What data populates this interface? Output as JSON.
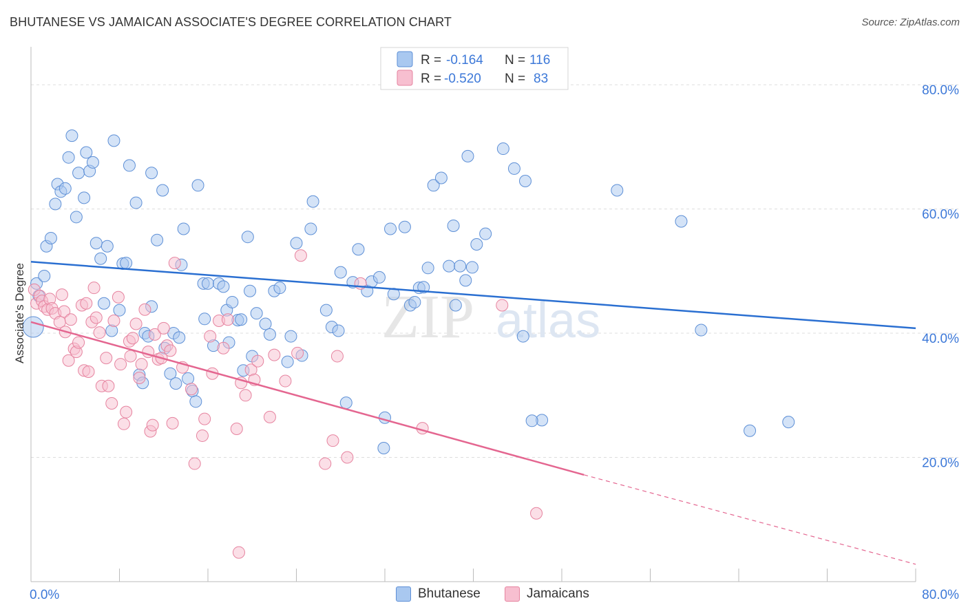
{
  "title": "BHUTANESE VS JAMAICAN ASSOCIATE'S DEGREE CORRELATION CHART",
  "source": "Source: ZipAtlas.com",
  "watermark": {
    "zip": "ZIP",
    "atlas": "atlas"
  },
  "colors": {
    "blue_fill": "#a9c8f0",
    "blue_stroke": "#5d8fd6",
    "blue_line": "#2a6fd1",
    "pink_fill": "#f7bfd0",
    "pink_stroke": "#e6839f",
    "pink_line": "#e46690",
    "axis_text": "#3c78d8",
    "grid": "#dddddd"
  },
  "legend_top": {
    "rows": [
      {
        "r_label": "R =",
        "r_value": "-0.164",
        "n_label": "N =",
        "n_value": "116",
        "series": "blue"
      },
      {
        "r_label": "R =",
        "r_value": "-0.520",
        "n_label": "N =",
        "n_value": "83",
        "series": "pink"
      }
    ]
  },
  "legend_bottom": [
    {
      "label": "Bhutanese",
      "series": "blue"
    },
    {
      "label": "Jamaicans",
      "series": "pink"
    }
  ],
  "chart_data": {
    "type": "scatter",
    "title": "BHUTANESE VS JAMAICAN ASSOCIATE'S DEGREE CORRELATION CHART",
    "xlabel": "",
    "ylabel": "Associate's Degree",
    "xlim": [
      0,
      80
    ],
    "ylim": [
      0,
      85
    ],
    "x_tick_labels": [
      {
        "value": 0,
        "label": "0.0%"
      },
      {
        "value": 80,
        "label": "80.0%"
      }
    ],
    "y_tick_labels": [
      {
        "value": 20,
        "label": "20.0%"
      },
      {
        "value": 40,
        "label": "40.0%"
      },
      {
        "value": 60,
        "label": "60.0%"
      },
      {
        "value": 80,
        "label": "80.0%"
      }
    ],
    "x_minor_ticks": [
      0,
      8,
      16,
      24,
      32,
      40,
      48,
      56,
      64,
      72,
      80
    ],
    "grid": true,
    "legend_placement": "top-center",
    "series": [
      {
        "name": "Bhutanese",
        "color": "#a9c8f0",
        "trend": {
          "x": [
            0,
            80
          ],
          "y": [
            51.5,
            40.8
          ],
          "extrapolated": false
        },
        "points": [
          [
            0.2,
            41.0
          ],
          [
            0.5,
            48.0
          ],
          [
            0.7,
            46.0
          ],
          [
            1.2,
            49.2
          ],
          [
            1.4,
            54.0
          ],
          [
            1.8,
            55.3
          ],
          [
            2.2,
            60.8
          ],
          [
            2.4,
            64.0
          ],
          [
            2.7,
            62.8
          ],
          [
            3.1,
            63.3
          ],
          [
            3.4,
            68.3
          ],
          [
            3.7,
            71.8
          ],
          [
            4.1,
            58.7
          ],
          [
            4.3,
            65.8
          ],
          [
            4.8,
            61.8
          ],
          [
            5.0,
            69.1
          ],
          [
            5.3,
            66.1
          ],
          [
            5.6,
            67.5
          ],
          [
            5.9,
            54.5
          ],
          [
            6.3,
            52.0
          ],
          [
            6.6,
            44.8
          ],
          [
            6.9,
            54.0
          ],
          [
            7.3,
            40.4
          ],
          [
            7.5,
            71.0
          ],
          [
            8.0,
            43.7
          ],
          [
            8.3,
            51.2
          ],
          [
            8.6,
            51.3
          ],
          [
            8.9,
            67.0
          ],
          [
            9.5,
            61.0
          ],
          [
            9.8,
            33.3
          ],
          [
            10.1,
            32.0
          ],
          [
            10.3,
            40.0
          ],
          [
            10.6,
            39.5
          ],
          [
            10.9,
            44.3
          ],
          [
            10.9,
            65.8
          ],
          [
            11.4,
            55.0
          ],
          [
            11.9,
            63.0
          ],
          [
            12.1,
            37.6
          ],
          [
            12.6,
            33.5
          ],
          [
            12.9,
            40.0
          ],
          [
            13.1,
            31.9
          ],
          [
            13.4,
            39.3
          ],
          [
            13.6,
            51.0
          ],
          [
            13.8,
            56.8
          ],
          [
            14.2,
            32.7
          ],
          [
            14.6,
            30.7
          ],
          [
            14.9,
            29.0
          ],
          [
            15.1,
            63.8
          ],
          [
            15.6,
            48.0
          ],
          [
            15.7,
            42.3
          ],
          [
            16.0,
            48.0
          ],
          [
            16.5,
            38.0
          ],
          [
            17.0,
            48.0
          ],
          [
            17.4,
            47.5
          ],
          [
            17.7,
            43.7
          ],
          [
            17.9,
            38.5
          ],
          [
            18.2,
            45.0
          ],
          [
            18.7,
            42.1
          ],
          [
            19.0,
            42.2
          ],
          [
            19.2,
            34.0
          ],
          [
            19.6,
            55.5
          ],
          [
            19.8,
            46.8
          ],
          [
            20.0,
            36.3
          ],
          [
            20.4,
            43.2
          ],
          [
            21.2,
            41.5
          ],
          [
            21.6,
            39.8
          ],
          [
            22.0,
            46.8
          ],
          [
            22.5,
            47.3
          ],
          [
            23.2,
            35.4
          ],
          [
            23.5,
            39.5
          ],
          [
            24.0,
            54.5
          ],
          [
            24.5,
            36.4
          ],
          [
            25.3,
            56.8
          ],
          [
            25.5,
            61.2
          ],
          [
            26.7,
            43.7
          ],
          [
            27.2,
            41.0
          ],
          [
            27.8,
            40.4
          ],
          [
            28.0,
            49.8
          ],
          [
            28.5,
            28.8
          ],
          [
            29.1,
            48.2
          ],
          [
            29.6,
            53.5
          ],
          [
            30.4,
            46.8
          ],
          [
            30.8,
            48.3
          ],
          [
            31.5,
            49.0
          ],
          [
            31.9,
            21.5
          ],
          [
            32.0,
            26.4
          ],
          [
            32.5,
            56.8
          ],
          [
            32.8,
            46.3
          ],
          [
            33.8,
            57.1
          ],
          [
            34.3,
            44.5
          ],
          [
            34.7,
            45.0
          ],
          [
            35.1,
            47.3
          ],
          [
            35.5,
            47.4
          ],
          [
            35.9,
            50.5
          ],
          [
            36.4,
            63.8
          ],
          [
            37.1,
            65.0
          ],
          [
            37.8,
            50.8
          ],
          [
            38.2,
            57.3
          ],
          [
            38.4,
            44.5
          ],
          [
            38.8,
            50.8
          ],
          [
            39.3,
            48.5
          ],
          [
            39.5,
            68.5
          ],
          [
            39.9,
            50.6
          ],
          [
            40.3,
            54.3
          ],
          [
            41.1,
            56.0
          ],
          [
            42.7,
            69.7
          ],
          [
            43.7,
            66.5
          ],
          [
            44.5,
            39.5
          ],
          [
            44.7,
            64.5
          ],
          [
            46.2,
            26.0
          ],
          [
            53.0,
            63.0
          ],
          [
            58.8,
            58.0
          ],
          [
            65.0,
            24.3
          ],
          [
            68.5,
            25.7
          ],
          [
            60.6,
            40.5
          ],
          [
            45.3,
            25.9
          ]
        ]
      },
      {
        "name": "Jamaicans",
        "color": "#f7bfd0",
        "trend": {
          "x": [
            0,
            50
          ],
          "y": [
            41.8,
            17.2
          ],
          "dashed_extension": {
            "x": [
              50,
              80
            ],
            "y": [
              17.2,
              2.8
            ]
          }
        },
        "points": [
          [
            0.3,
            47.0
          ],
          [
            0.5,
            44.8
          ],
          [
            0.8,
            46.0
          ],
          [
            1.0,
            45.2
          ],
          [
            1.2,
            44.3
          ],
          [
            1.5,
            43.8
          ],
          [
            1.7,
            45.5
          ],
          [
            1.9,
            44.0
          ],
          [
            2.2,
            43.2
          ],
          [
            2.6,
            41.8
          ],
          [
            2.8,
            46.2
          ],
          [
            3.0,
            43.5
          ],
          [
            3.1,
            40.2
          ],
          [
            3.4,
            35.6
          ],
          [
            3.6,
            42.2
          ],
          [
            3.9,
            37.5
          ],
          [
            4.1,
            37.0
          ],
          [
            4.3,
            38.5
          ],
          [
            4.6,
            44.5
          ],
          [
            4.8,
            34.0
          ],
          [
            5.0,
            44.8
          ],
          [
            5.2,
            33.8
          ],
          [
            5.5,
            41.8
          ],
          [
            5.7,
            47.3
          ],
          [
            5.9,
            42.5
          ],
          [
            6.2,
            40.1
          ],
          [
            6.4,
            31.5
          ],
          [
            6.8,
            36.0
          ],
          [
            7.0,
            31.5
          ],
          [
            7.3,
            28.7
          ],
          [
            7.5,
            42.0
          ],
          [
            7.9,
            45.8
          ],
          [
            8.1,
            35.0
          ],
          [
            8.4,
            25.4
          ],
          [
            8.6,
            27.3
          ],
          [
            8.9,
            38.7
          ],
          [
            9.2,
            39.2
          ],
          [
            9.5,
            41.5
          ],
          [
            9.8,
            32.8
          ],
          [
            10.0,
            35.0
          ],
          [
            10.3,
            43.8
          ],
          [
            10.6,
            37.0
          ],
          [
            10.8,
            24.2
          ],
          [
            11.0,
            25.2
          ],
          [
            11.2,
            39.8
          ],
          [
            11.5,
            35.8
          ],
          [
            11.8,
            36.0
          ],
          [
            12.0,
            40.8
          ],
          [
            12.3,
            38.0
          ],
          [
            12.6,
            37.2
          ],
          [
            12.8,
            25.5
          ],
          [
            13.0,
            51.3
          ],
          [
            13.7,
            34.5
          ],
          [
            14.5,
            31.0
          ],
          [
            14.8,
            19.0
          ],
          [
            15.5,
            23.5
          ],
          [
            15.7,
            26.2
          ],
          [
            16.2,
            39.5
          ],
          [
            16.4,
            33.5
          ],
          [
            17.0,
            42.0
          ],
          [
            17.4,
            37.6
          ],
          [
            17.8,
            42.2
          ],
          [
            18.6,
            24.6
          ],
          [
            18.8,
            4.7
          ],
          [
            19.0,
            32.0
          ],
          [
            19.4,
            30.0
          ],
          [
            19.9,
            34.1
          ],
          [
            20.2,
            32.5
          ],
          [
            21.6,
            26.5
          ],
          [
            22.0,
            36.5
          ],
          [
            23.0,
            32.3
          ],
          [
            24.1,
            36.8
          ],
          [
            24.4,
            52.5
          ],
          [
            26.6,
            19.0
          ],
          [
            27.3,
            22.7
          ],
          [
            27.7,
            36.3
          ],
          [
            28.6,
            20.0
          ],
          [
            29.8,
            48.0
          ],
          [
            35.4,
            24.7
          ],
          [
            42.6,
            44.5
          ],
          [
            45.7,
            11.0
          ],
          [
            20.5,
            35.5
          ],
          [
            9.0,
            36.3
          ]
        ]
      }
    ]
  }
}
